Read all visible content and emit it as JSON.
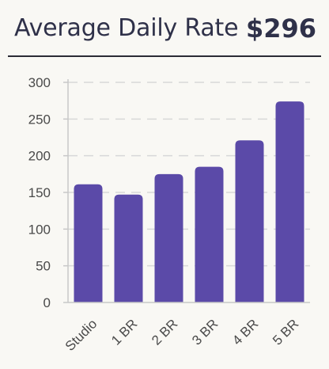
{
  "header": {
    "title": "Average Daily Rate",
    "value": "$296"
  },
  "chart_data": {
    "type": "bar",
    "categories": [
      "Studio",
      "1 BR",
      "2 BR",
      "3 BR",
      "4 BR",
      "5 BR"
    ],
    "values": [
      161,
      147,
      175,
      185,
      221,
      274
    ],
    "ylim": [
      0,
      300
    ],
    "yticks": [
      0,
      50,
      100,
      150,
      200,
      250,
      300
    ],
    "grid": true,
    "bar_color": "#5b4aa8",
    "grid_color": "#d8d8d8",
    "axis_color": "#c8c8c8"
  }
}
